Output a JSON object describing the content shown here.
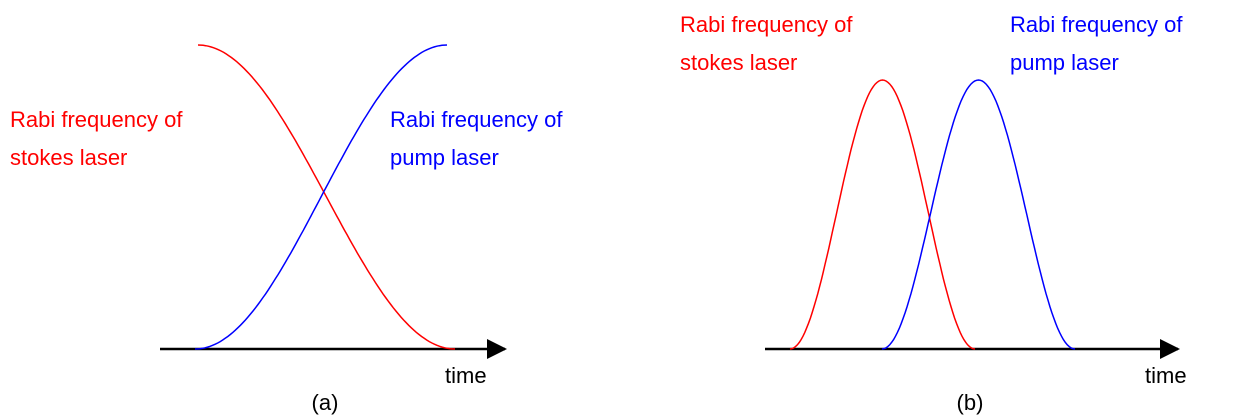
{
  "panels": [
    {
      "caption": "(a)",
      "axis_label": "time",
      "curves": [
        {
          "label_lines": [
            "Rabi frequency of",
            "stokes laser"
          ],
          "color": "#ff0000"
        },
        {
          "label_lines": [
            "Rabi frequency of",
            "pump laser"
          ],
          "color": "#0000ff"
        }
      ]
    },
    {
      "caption": "(b)",
      "axis_label": "time",
      "curves": [
        {
          "label_lines": [
            "Rabi frequency of",
            "stokes laser"
          ],
          "color": "#ff0000"
        },
        {
          "label_lines": [
            "Rabi frequency of",
            "pump laser"
          ],
          "color": "#0000ff"
        }
      ]
    }
  ]
}
